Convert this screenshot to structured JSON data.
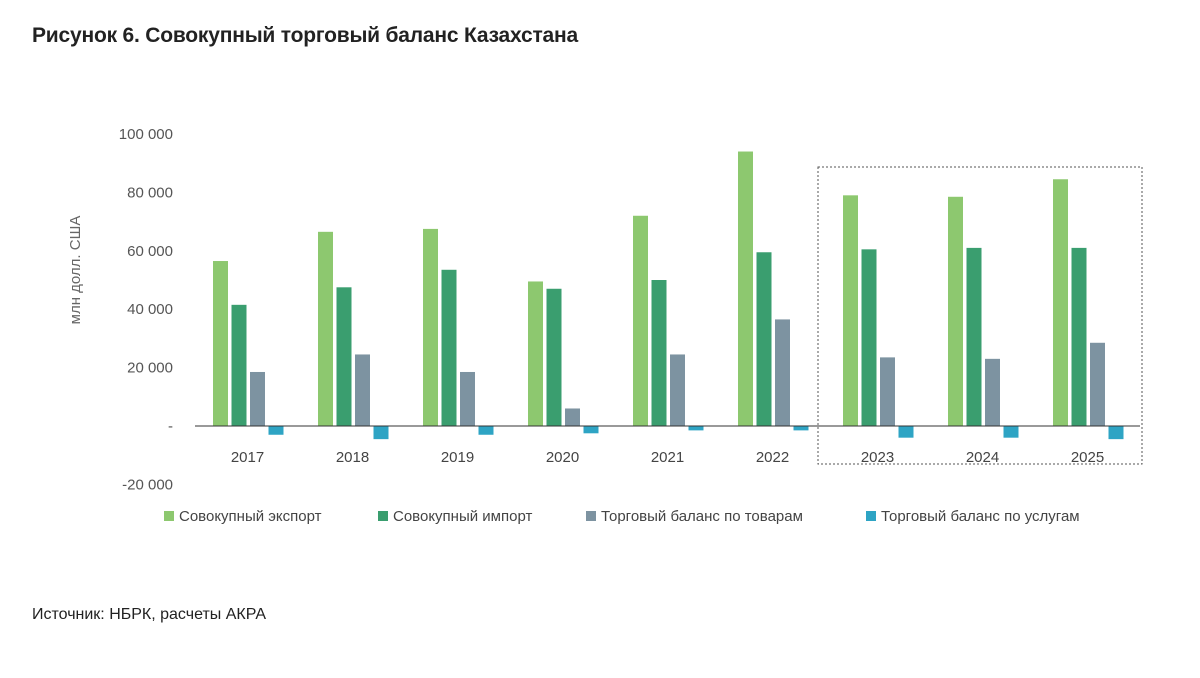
{
  "figure": {
    "title": "Рисунок 6. Совокупный торговый баланс Казахстана",
    "source": "Источник: НБРК, расчеты АКРА"
  },
  "chart_data": {
    "type": "bar",
    "ylabel": "млн долл. США",
    "xlabel": "",
    "ylim": [
      -20000,
      100000
    ],
    "yticks": [
      -20000,
      0,
      20000,
      40000,
      60000,
      80000,
      100000
    ],
    "ytick_labels": [
      "-20 000",
      "-",
      "20 000",
      "40 000",
      "60 000",
      "80 000",
      "100 000"
    ],
    "grid": false,
    "legend_position": "bottom",
    "categories": [
      "2017",
      "2018",
      "2019",
      "2020",
      "2021",
      "2022",
      "2023",
      "2024",
      "2025"
    ],
    "highlight_categories": [
      "2023",
      "2024",
      "2025"
    ],
    "series": [
      {
        "name": "Совокупный экспорт",
        "color": "#8dc86f",
        "values": [
          56500,
          66500,
          67500,
          49500,
          72000,
          94000,
          79000,
          78500,
          84500
        ]
      },
      {
        "name": "Совокупный импорт",
        "color": "#3a9e6f",
        "values": [
          41500,
          47500,
          53500,
          47000,
          50000,
          59500,
          60500,
          61000,
          61000
        ]
      },
      {
        "name": "Торговый баланс по товарам",
        "color": "#7d93a1",
        "values": [
          18500,
          24500,
          18500,
          6000,
          24500,
          36500,
          23500,
          23000,
          28500
        ]
      },
      {
        "name": "Торговый баланс по услугам",
        "color": "#2ea4c4",
        "values": [
          -3000,
          -4500,
          -3000,
          -2500,
          -1500,
          -1500,
          -4000,
          -4000,
          -4500
        ]
      }
    ]
  }
}
